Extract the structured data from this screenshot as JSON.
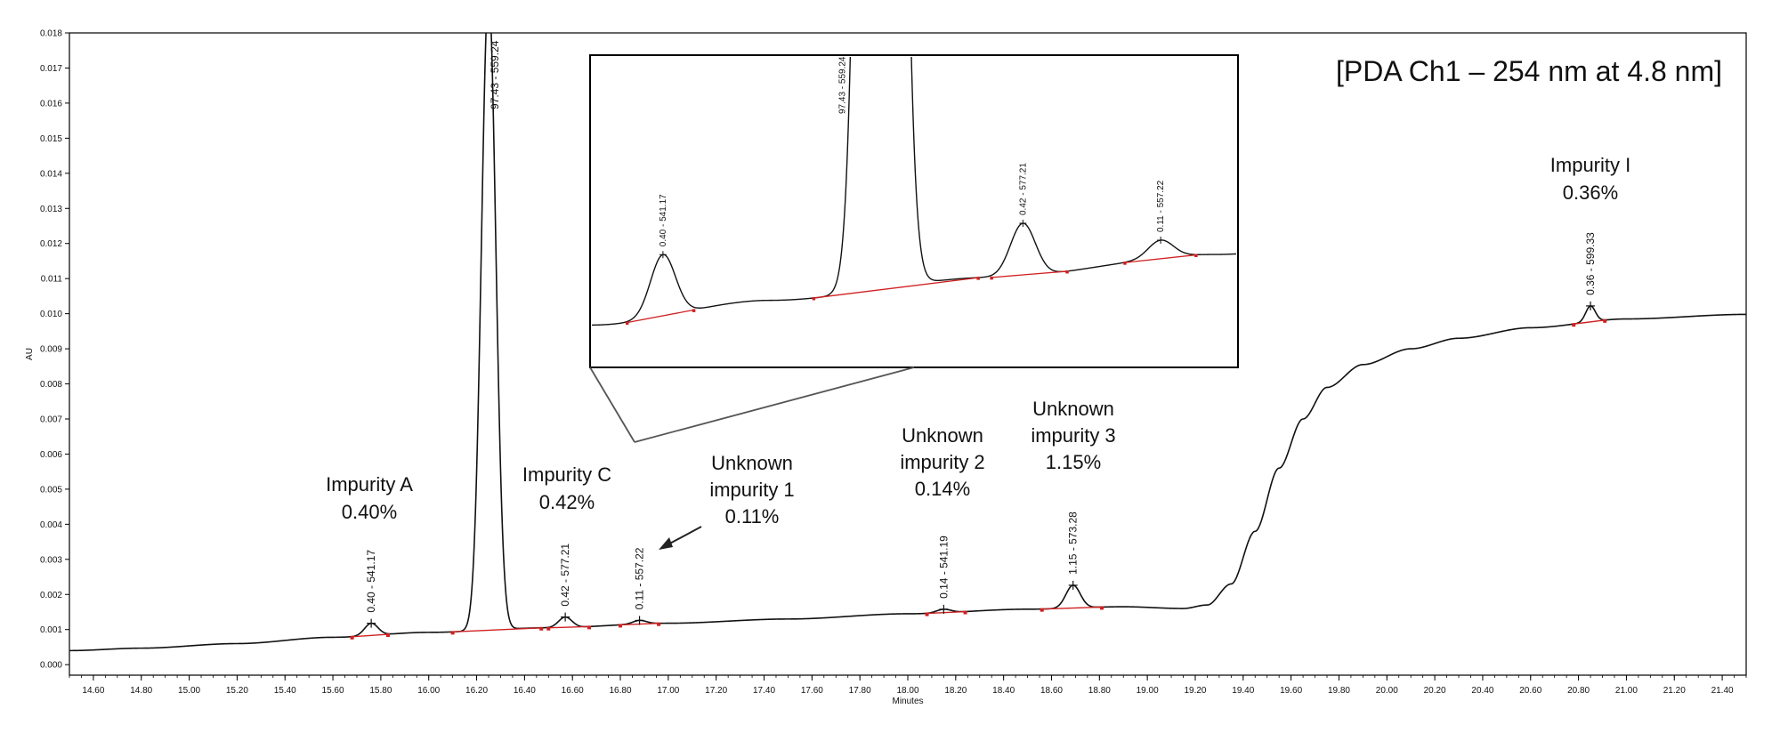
{
  "chart_data": {
    "type": "line",
    "title": "[PDA Ch1 – 254 nm at 4.8 nm]",
    "xlabel": "Minutes",
    "ylabel": "AU",
    "xlim": [
      14.5,
      21.5
    ],
    "ylim": [
      -0.0003,
      0.018
    ],
    "x_ticks": [
      "14.60",
      "14.80",
      "15.00",
      "15.20",
      "15.40",
      "15.60",
      "15.80",
      "16.00",
      "16.20",
      "16.40",
      "16.60",
      "16.80",
      "17.00",
      "17.20",
      "17.40",
      "17.60",
      "17.80",
      "18.00",
      "18.20",
      "18.40",
      "18.60",
      "18.80",
      "19.00",
      "19.20",
      "19.40",
      "19.60",
      "19.80",
      "20.00",
      "20.20",
      "20.40",
      "20.60",
      "20.80",
      "21.00",
      "21.20",
      "21.40"
    ],
    "y_ticks": [
      "0.000",
      "0.001",
      "0.002",
      "0.003",
      "0.004",
      "0.005",
      "0.006",
      "0.007",
      "0.008",
      "0.009",
      "0.010",
      "0.011",
      "0.012",
      "0.013",
      "0.014",
      "0.015",
      "0.016",
      "0.017",
      "0.018"
    ],
    "baseline_points": [
      {
        "x": 14.5,
        "y": 0.0004
      },
      {
        "x": 14.8,
        "y": 0.00047
      },
      {
        "x": 15.2,
        "y": 0.0006
      },
      {
        "x": 15.6,
        "y": 0.00078
      },
      {
        "x": 16.0,
        "y": 0.00092
      },
      {
        "x": 16.5,
        "y": 0.00105
      },
      {
        "x": 17.0,
        "y": 0.00118
      },
      {
        "x": 17.5,
        "y": 0.0013
      },
      {
        "x": 18.0,
        "y": 0.00145
      },
      {
        "x": 18.5,
        "y": 0.00158
      },
      {
        "x": 18.9,
        "y": 0.00165
      },
      {
        "x": 19.15,
        "y": 0.0016
      },
      {
        "x": 19.25,
        "y": 0.0017
      },
      {
        "x": 19.35,
        "y": 0.0023
      },
      {
        "x": 19.45,
        "y": 0.0038
      },
      {
        "x": 19.55,
        "y": 0.0056
      },
      {
        "x": 19.65,
        "y": 0.007
      },
      {
        "x": 19.75,
        "y": 0.0079
      },
      {
        "x": 19.9,
        "y": 0.00855
      },
      {
        "x": 20.1,
        "y": 0.009
      },
      {
        "x": 20.3,
        "y": 0.0093
      },
      {
        "x": 20.6,
        "y": 0.0096
      },
      {
        "x": 21.0,
        "y": 0.00985
      },
      {
        "x": 21.5,
        "y": 0.00998
      }
    ],
    "peaks": [
      {
        "x": 15.76,
        "height": 0.00035,
        "sigma": 0.028,
        "label": "0.40 - 541.17"
      },
      {
        "x": 16.25,
        "height": 0.0182,
        "sigma": 0.03,
        "label": "97.43 - 559.24"
      },
      {
        "x": 16.57,
        "height": 0.0003,
        "sigma": 0.028,
        "label": "0.42 - 577.21"
      },
      {
        "x": 16.88,
        "height": 0.0001,
        "sigma": 0.028,
        "label": "0.11 - 557.22"
      },
      {
        "x": 18.15,
        "height": 0.0001,
        "sigma": 0.03,
        "label": "0.14 - 541.19"
      },
      {
        "x": 18.69,
        "height": 0.00065,
        "sigma": 0.03,
        "label": "1.15 - 573.28"
      },
      {
        "x": 20.85,
        "height": 0.00045,
        "sigma": 0.02,
        "label": "0.36 - 599.33"
      }
    ],
    "integration_segments": [
      {
        "x1": 15.68,
        "x2": 15.83
      },
      {
        "x1": 16.1,
        "x2": 16.47
      },
      {
        "x1": 16.5,
        "x2": 16.67
      },
      {
        "x1": 16.8,
        "x2": 16.96
      },
      {
        "x1": 18.08,
        "x2": 18.24
      },
      {
        "x1": 18.56,
        "x2": 18.81
      },
      {
        "x1": 20.78,
        "x2": 20.91
      }
    ],
    "annotations": [
      {
        "name": "Impurity A",
        "value": "0.40%"
      },
      {
        "name": "Impurity C",
        "value": "0.42%"
      },
      {
        "name": "Unknown impurity 1",
        "value": "0.11%"
      },
      {
        "name": "Unknown impurity 2",
        "value": "0.14%"
      },
      {
        "name": "Unknown impurity 3",
        "value": "1.15%"
      },
      {
        "name": "Impurity I",
        "value": "0.36%"
      }
    ],
    "inset": {
      "xlim": [
        15.6,
        17.05
      ],
      "peak_labels": [
        "0.40 - 541.17",
        "97.43 - 559.24",
        "0.42 - 577.21",
        "0.11 - 557.22"
      ]
    },
    "grid": false,
    "legend": "none"
  }
}
